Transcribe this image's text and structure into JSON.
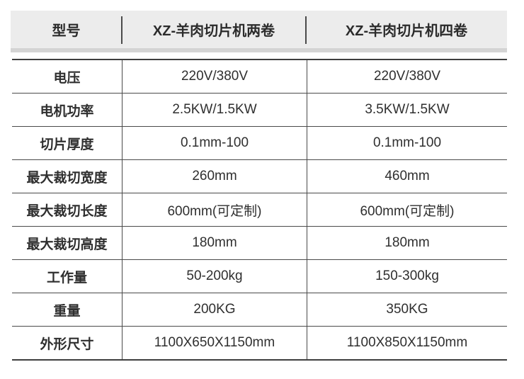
{
  "spec_table": {
    "header": {
      "model_label": "型号",
      "product_columns": [
        "XZ-羊肉切片机两卷",
        "XZ-羊肉切片机四卷"
      ]
    },
    "rows": [
      {
        "label": "电压",
        "two_roll": "220V/380V",
        "four_roll": "220V/380V"
      },
      {
        "label": "电机功率",
        "two_roll": "2.5KW/1.5KW",
        "four_roll": "3.5KW/1.5KW"
      },
      {
        "label": "切片厚度",
        "two_roll": "0.1mm-100",
        "four_roll": "0.1mm-100"
      },
      {
        "label": "最大裁切宽度",
        "two_roll": "260mm",
        "four_roll": "460mm"
      },
      {
        "label": "最大裁切长度",
        "two_roll": "600mm(可定制)",
        "four_roll": "600mm(可定制)"
      },
      {
        "label": "最大裁切高度",
        "two_roll": "180mm",
        "four_roll": "180mm"
      },
      {
        "label": "工作量",
        "two_roll": "50-200kg",
        "four_roll": "150-300kg"
      },
      {
        "label": "重量",
        "two_roll": "200KG",
        "four_roll": "350KG"
      },
      {
        "label": "外形尺寸",
        "two_roll": "1100X650X1150mm",
        "four_roll": "1100X850X1150mm"
      }
    ],
    "colors": {
      "header_bg": "#ececec",
      "header_shadow": "#d4d4d4",
      "border": "#4a4a4a",
      "text": "#2f2f2f"
    }
  }
}
